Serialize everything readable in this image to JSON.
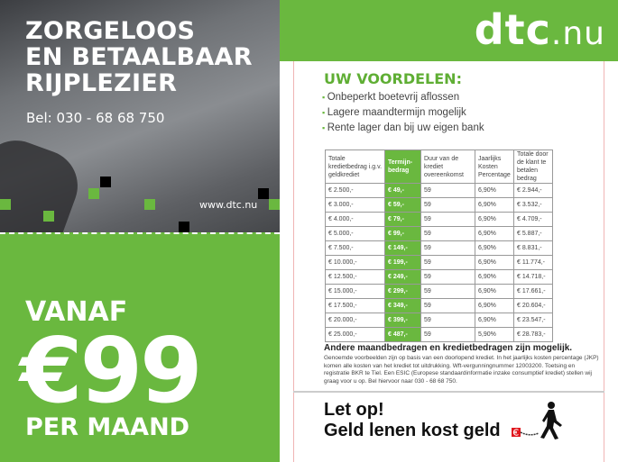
{
  "left": {
    "headline": [
      "ZORGELOOS",
      "EN BETAALBAAR",
      "RIJPLEZIER"
    ],
    "phone": "Bel: 030 - 68 68 750",
    "website": "www.dtc.nu",
    "vanaf": "VANAF",
    "price": "€99",
    "per_maand": "PER MAAND"
  },
  "brand": {
    "logo_main": "dtc",
    "logo_suffix": ".nu",
    "green": "#6ab83f"
  },
  "benefits": {
    "title": "UW VOORDELEN:",
    "items": [
      "Onbeperkt boetevrij aflossen",
      "Lagere maandtermijn mogelijk",
      "Rente lager dan bij uw eigen bank"
    ]
  },
  "table": {
    "headers": [
      "Totale kredietbedrag i.g.v. geldkrediet",
      "Termijn-bedrag",
      "Duur van de krediet overeenkomst",
      "Jaarlijks Kosten Percentage",
      "Totale door de klant te betalen bedrag"
    ],
    "rows": [
      [
        "€  2.500,-",
        "€  49,-",
        "59",
        "6,90%",
        "€  2.944,-"
      ],
      [
        "€  3.000,-",
        "€  59,-",
        "59",
        "6,90%",
        "€  3.532,-"
      ],
      [
        "€  4.000,-",
        "€  79,-",
        "59",
        "6,90%",
        "€  4.709,-"
      ],
      [
        "€  5.000,-",
        "€  99,-",
        "59",
        "6,90%",
        "€  5.887,-"
      ],
      [
        "€  7.500,-",
        "€ 149,-",
        "59",
        "6,90%",
        "€  8.831,-"
      ],
      [
        "€ 10.000,-",
        "€ 199,-",
        "59",
        "6,90%",
        "€ 11.774,-"
      ],
      [
        "€ 12.500,-",
        "€ 249,-",
        "59",
        "6,90%",
        "€ 14.718,-"
      ],
      [
        "€ 15.000,-",
        "€ 299,-",
        "59",
        "6,90%",
        "€ 17.661,-"
      ],
      [
        "€ 17.500,-",
        "€ 349,-",
        "59",
        "6,90%",
        "€ 20.604,-"
      ],
      [
        "€ 20.000,-",
        "€ 399,-",
        "59",
        "6,90%",
        "€ 23.547,-"
      ],
      [
        "€ 25.000,-",
        "€ 487,-",
        "59",
        "5,90%",
        "€ 28.783,-"
      ]
    ]
  },
  "note": {
    "title": "Andere maandbedragen en kredietbedragen zijn mogelijk.",
    "body": "Genoemde voorbeelden zijn op basis van een doorlopend krediet. In het jaarlijks kosten percentage (JKP) komen alle kosten van het krediet tot uitdrukking. Wft-vergunningnummer 12003200. Toetsing en registratie BKR te Tiel. Een ESIC (Europese standaardinformatie inzake consumptief krediet) stellen wij graag voor u op. Bel hiervoor naar 030 - 68 68 750."
  },
  "warning": {
    "line1": "Let op!",
    "line2": "Geld lenen kost geld",
    "icon": "walking-man-chained-euro-icon"
  }
}
